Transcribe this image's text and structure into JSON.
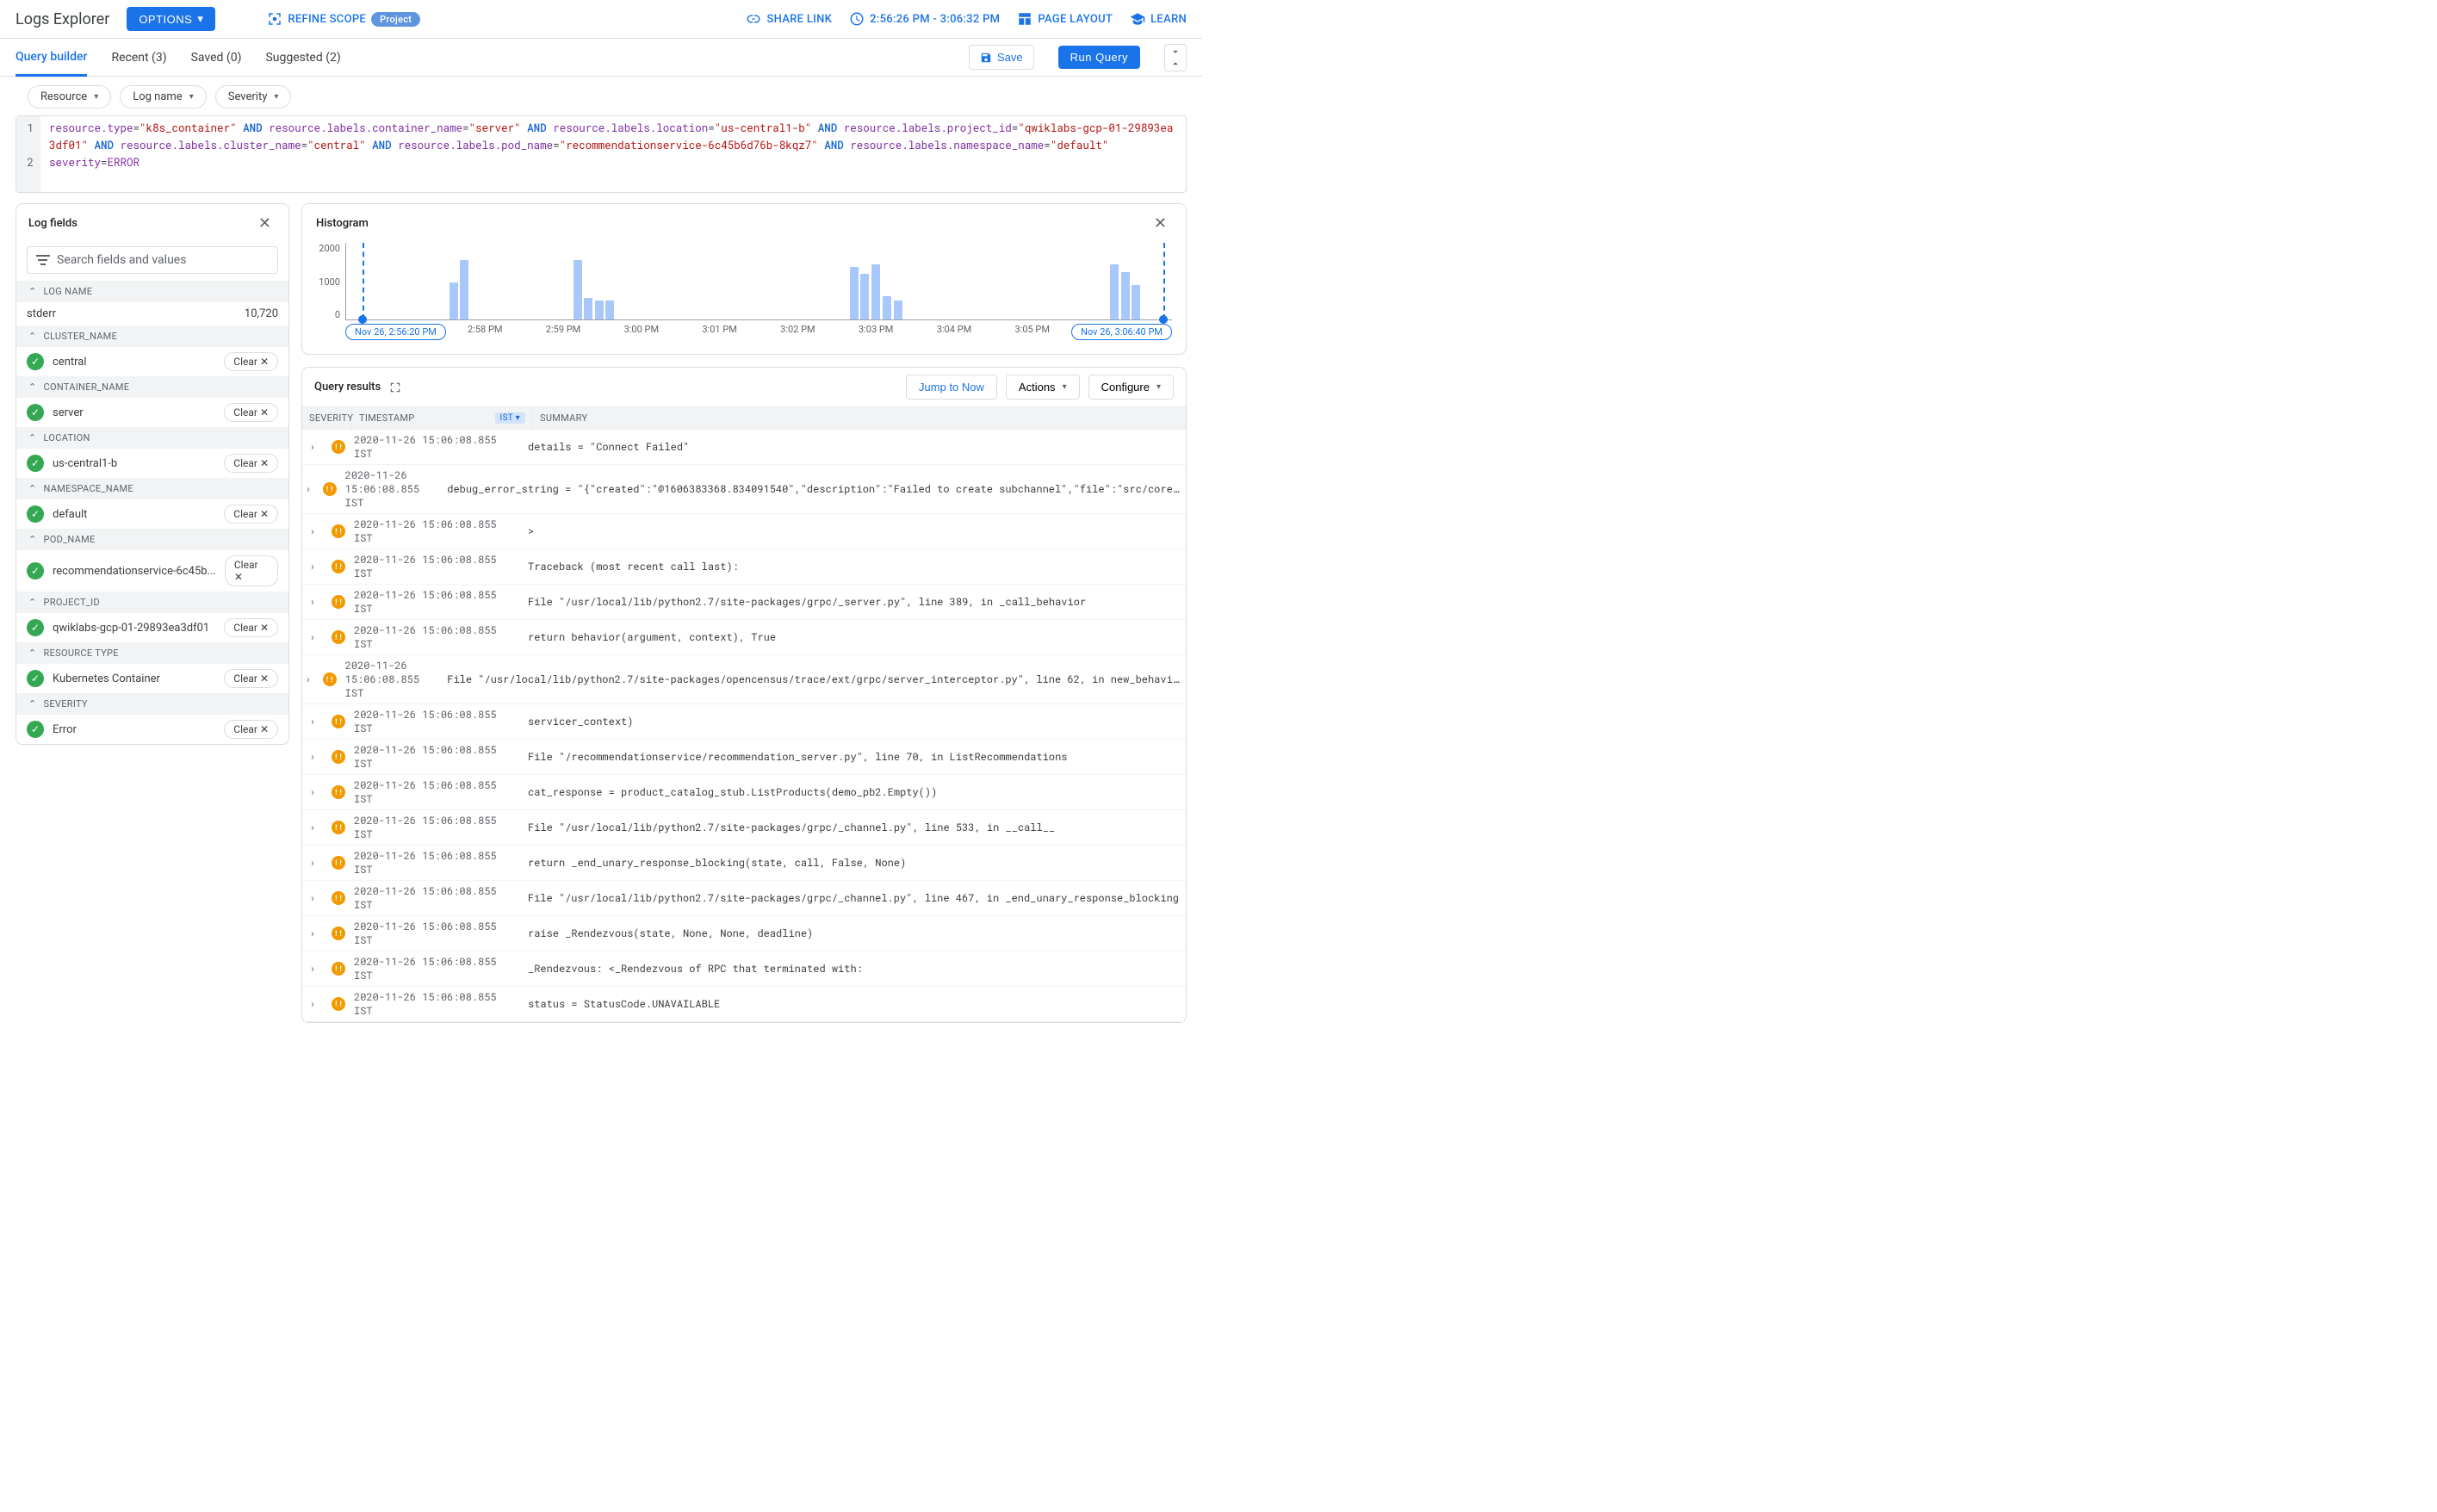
{
  "header": {
    "title": "Logs Explorer",
    "options_label": "OPTIONS",
    "refine_scope_label": "REFINE SCOPE",
    "scope_chip": "Project",
    "share_link_label": "SHARE LINK",
    "time_range": "2:56:26 PM - 3:06:32 PM",
    "page_layout_label": "PAGE LAYOUT",
    "learn_label": "LEARN"
  },
  "tabs": {
    "query_builder": "Query builder",
    "recent": "Recent (3)",
    "saved": "Saved (0)",
    "suggested": "Suggested (2)",
    "save": "Save",
    "run_query": "Run Query"
  },
  "filter_chips": {
    "resource": "Resource",
    "log_name": "Log name",
    "severity": "Severity"
  },
  "query": {
    "gutter1": "1",
    "gutter2": "2",
    "k_restype": "resource.type",
    "eq": "=",
    "v_restype": "\"k8s_container\"",
    "and": " AND ",
    "k_cname": "resource.labels.container_name",
    "v_cname": "\"server\"",
    "k_loc": "resource.labels.location",
    "v_loc": "\"us-central1-b\"",
    "k_proj": "resource.labels.project_id",
    "v_proj": "\"qwiklabs-gcp-01-29893ea3df01\"",
    "k_cluster": "resource.labels.cluster_name",
    "v_cluster": "\"central\"",
    "k_pod": "resource.labels.pod_name",
    "v_pod": "\"recommendationservice-6c45b6d76b-8kqz7\"",
    "k_ns": "resource.labels.namespace_name",
    "v_ns": "\"default\"",
    "k_sev": "severity",
    "v_sev": "ERROR"
  },
  "log_fields": {
    "title": "Log fields",
    "search_placeholder": "Search fields and values",
    "clear_label": "Clear",
    "sections": {
      "log_name": "LOG NAME",
      "cluster_name": "CLUSTER_NAME",
      "container_name": "CONTAINER_NAME",
      "location": "LOCATION",
      "namespace_name": "NAMESPACE_NAME",
      "pod_name": "POD_NAME",
      "project_id": "PROJECT_ID",
      "resource_type": "RESOURCE TYPE",
      "severity": "SEVERITY"
    },
    "values": {
      "stderr": "stderr",
      "stderr_count": "10,720",
      "central": "central",
      "server": "server",
      "uscentral1b": "us-central1-b",
      "default": "default",
      "recsvc": "recommendationservice-6c45b...",
      "qwiklabs": "qwiklabs-gcp-01-29893ea3df01",
      "k8s": "Kubernetes Container",
      "error": "Error"
    }
  },
  "histogram": {
    "title": "Histogram",
    "yticks": {
      "y2000": "2000",
      "y1000": "1000",
      "y0": "0"
    },
    "start_label": "Nov 26, 2:56:20 PM",
    "end_label": "Nov 26, 3:06:40 PM",
    "xticks": {
      "t258": "2:58 PM",
      "t259": "2:59 PM",
      "t300": "3:00 PM",
      "t301": "3:01 PM",
      "t302": "3:02 PM",
      "t303": "3:03 PM",
      "t304": "3:04 PM",
      "t305": "3:05 PM"
    },
    "bar_color": "#a8c7fa",
    "bars": [
      {
        "left_pct": 12.5,
        "h_pct": 48
      },
      {
        "left_pct": 13.8,
        "h_pct": 78
      },
      {
        "left_pct": 27.5,
        "h_pct": 78
      },
      {
        "left_pct": 28.8,
        "h_pct": 28
      },
      {
        "left_pct": 30.1,
        "h_pct": 25
      },
      {
        "left_pct": 31.4,
        "h_pct": 25
      },
      {
        "left_pct": 61.0,
        "h_pct": 68
      },
      {
        "left_pct": 62.3,
        "h_pct": 60
      },
      {
        "left_pct": 63.6,
        "h_pct": 72
      },
      {
        "left_pct": 65.0,
        "h_pct": 30
      },
      {
        "left_pct": 66.3,
        "h_pct": 25
      },
      {
        "left_pct": 92.5,
        "h_pct": 72
      },
      {
        "left_pct": 93.8,
        "h_pct": 62
      },
      {
        "left_pct": 95.1,
        "h_pct": 45
      }
    ]
  },
  "results": {
    "title": "Query results",
    "jump_now": "Jump to Now",
    "actions": "Actions",
    "configure": "Configure",
    "cols": {
      "severity": "SEVERITY",
      "timestamp": "TIMESTAMP",
      "ist": "IST",
      "summary": "SUMMARY"
    },
    "ts": "2020-11-26 15:06:08.855 IST",
    "rows": [
      "details = \"Connect Failed\"",
      "debug_error_string = \"{\"created\":\"@1606383368.834091540\",\"description\":\"Failed to create subchannel\",\"file\":\"src/core…",
      ">",
      "Traceback (most recent call last):",
      "File \"/usr/local/lib/python2.7/site-packages/grpc/_server.py\", line 389, in _call_behavior",
      "return behavior(argument, context), True",
      "File \"/usr/local/lib/python2.7/site-packages/opencensus/trace/ext/grpc/server_interceptor.py\", line 62, in new_behavi…",
      "servicer_context)",
      "File \"/recommendationservice/recommendation_server.py\", line 70, in ListRecommendations",
      "cat_response = product_catalog_stub.ListProducts(demo_pb2.Empty())",
      "File \"/usr/local/lib/python2.7/site-packages/grpc/_channel.py\", line 533, in __call__",
      "return _end_unary_response_blocking(state, call, False, None)",
      "File \"/usr/local/lib/python2.7/site-packages/grpc/_channel.py\", line 467, in _end_unary_response_blocking",
      "raise _Rendezvous(state, None, None, deadline)",
      "_Rendezvous: <_Rendezvous of RPC that terminated with:",
      "status = StatusCode.UNAVAILABLE"
    ]
  }
}
